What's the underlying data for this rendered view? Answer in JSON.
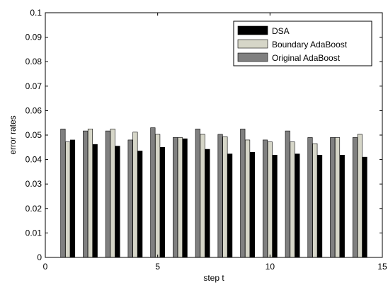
{
  "chart_data": {
    "type": "bar",
    "title": "",
    "xlabel": "step t",
    "ylabel": "error rates",
    "xlim": [
      0,
      15
    ],
    "ylim": [
      0,
      0.1
    ],
    "x_ticks": [
      "0",
      "5",
      "10",
      "15"
    ],
    "y_ticks": [
      "0",
      "0.01",
      "0.02",
      "0.03",
      "0.04",
      "0.05",
      "0.06",
      "0.07",
      "0.08",
      "0.09",
      "0.1"
    ],
    "grid": false,
    "legend_position": "top-right",
    "categories": [
      1,
      2,
      3,
      4,
      5,
      6,
      7,
      8,
      9,
      10,
      11,
      12,
      13,
      14
    ],
    "series": [
      {
        "name": "Original AdaBoost",
        "color": "#808080",
        "values": [
          0.0525,
          0.0517,
          0.0517,
          0.048,
          0.053,
          0.049,
          0.0525,
          0.0503,
          0.0525,
          0.048,
          0.0517,
          0.049,
          0.049,
          0.049
        ]
      },
      {
        "name": "Boundary AdaBoost",
        "color": "#d6d6c8",
        "values": [
          0.0472,
          0.0525,
          0.0525,
          0.0512,
          0.0503,
          0.049,
          0.0503,
          0.0493,
          0.048,
          0.0472,
          0.0472,
          0.0465,
          0.049,
          0.0503
        ]
      },
      {
        "name": "DSA",
        "color": "#000000",
        "values": [
          0.048,
          0.0462,
          0.0455,
          0.0435,
          0.045,
          0.0485,
          0.0442,
          0.0423,
          0.043,
          0.0418,
          0.0423,
          0.0418,
          0.0418,
          0.041
        ]
      }
    ],
    "legend_order": [
      "DSA",
      "Boundary AdaBoost",
      "Original AdaBoost"
    ]
  }
}
